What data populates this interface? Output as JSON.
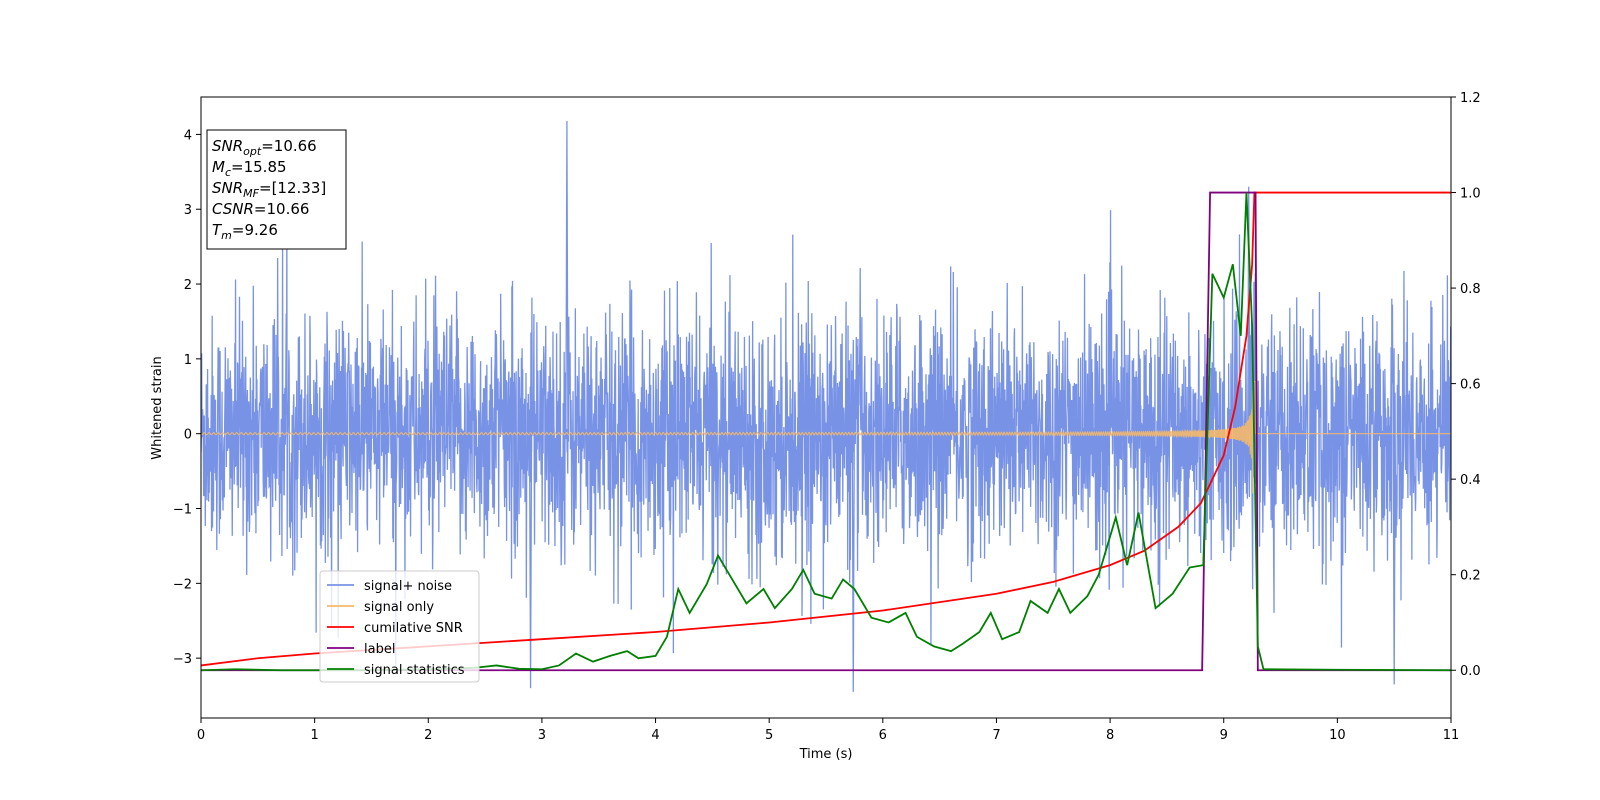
{
  "chart_data": {
    "type": "line",
    "xlabel": "Time (s)",
    "ylabel": "Whitened strain",
    "xlim": [
      0,
      11
    ],
    "ylim_left": [
      -3.8,
      4.5
    ],
    "ylim_right": [
      -0.1,
      1.2
    ],
    "x_ticks": [
      "0",
      "1",
      "2",
      "3",
      "4",
      "5",
      "6",
      "7",
      "8",
      "9",
      "10",
      "11"
    ],
    "y_ticks_left": [
      "−3",
      "−2",
      "−1",
      "0",
      "1",
      "2",
      "3",
      "4"
    ],
    "y_ticks_right": [
      "0.0",
      "0.2",
      "0.4",
      "0.6",
      "0.8",
      "1.0",
      "1.2"
    ],
    "grid": false,
    "legend_placement": "lower-left",
    "info_box": {
      "lines": [
        {
          "main": "SNR",
          "sub": "opt",
          "value": "=10.66"
        },
        {
          "main": "M",
          "sub": "c",
          "value": "=15.85"
        },
        {
          "main": "SNR",
          "sub": "MF",
          "value": "=[12.33]"
        },
        {
          "main": "CSNR",
          "sub": "",
          "value": "=10.66"
        },
        {
          "main": "T",
          "sub": "m",
          "value": "=9.26"
        }
      ]
    },
    "series": [
      {
        "name": "signal+ noise",
        "color": "#7893e6",
        "axis": "left",
        "kind": "noise",
        "approx_range": [
          -3.4,
          4.2
        ],
        "notable_spikes": [
          {
            "x": 3.22,
            "y": 4.18
          },
          {
            "x": 5.74,
            "y": -3.45
          },
          {
            "x": 2.9,
            "y": -3.4
          },
          {
            "x": 9.22,
            "y": 3.3
          },
          {
            "x": 10.5,
            "y": -3.35
          }
        ]
      },
      {
        "name": "signal only",
        "color": "#f5b96a",
        "axis": "left",
        "kind": "chirp",
        "merger_time": 9.26,
        "peak_amplitude": 1.2
      },
      {
        "name": "cumilative SNR",
        "color": "#ff0000",
        "axis": "right",
        "points": [
          [
            0,
            0.01
          ],
          [
            0.5,
            0.025
          ],
          [
            1,
            0.035
          ],
          [
            2,
            0.05
          ],
          [
            3,
            0.065
          ],
          [
            4,
            0.08
          ],
          [
            5,
            0.1
          ],
          [
            6,
            0.125
          ],
          [
            7,
            0.16
          ],
          [
            7.5,
            0.185
          ],
          [
            8,
            0.22
          ],
          [
            8.3,
            0.25
          ],
          [
            8.6,
            0.3
          ],
          [
            8.8,
            0.35
          ],
          [
            9.0,
            0.45
          ],
          [
            9.1,
            0.55
          ],
          [
            9.2,
            0.7
          ],
          [
            9.25,
            0.85
          ],
          [
            9.27,
            1.0
          ],
          [
            11,
            1.0
          ]
        ]
      },
      {
        "name": "label",
        "color": "#800080",
        "axis": "right",
        "points": [
          [
            0,
            0.0
          ],
          [
            8.81,
            0.0
          ],
          [
            8.88,
            1.0
          ],
          [
            9.28,
            1.0
          ],
          [
            9.3,
            0.0
          ],
          [
            11,
            0.0
          ]
        ]
      },
      {
        "name": "signal statistics",
        "color": "#008000",
        "axis": "right",
        "points": [
          [
            0,
            0.0
          ],
          [
            0.3,
            0.002
          ],
          [
            0.7,
            0.0
          ],
          [
            1.5,
            0.0
          ],
          [
            2.0,
            0.002
          ],
          [
            2.4,
            0.005
          ],
          [
            2.6,
            0.01
          ],
          [
            2.8,
            0.003
          ],
          [
            3.0,
            0.002
          ],
          [
            3.15,
            0.01
          ],
          [
            3.3,
            0.035
          ],
          [
            3.45,
            0.018
          ],
          [
            3.6,
            0.03
          ],
          [
            3.75,
            0.04
          ],
          [
            3.85,
            0.025
          ],
          [
            4.0,
            0.03
          ],
          [
            4.1,
            0.07
          ],
          [
            4.2,
            0.17
          ],
          [
            4.3,
            0.12
          ],
          [
            4.45,
            0.18
          ],
          [
            4.55,
            0.24
          ],
          [
            4.65,
            0.2
          ],
          [
            4.8,
            0.14
          ],
          [
            4.95,
            0.17
          ],
          [
            5.05,
            0.13
          ],
          [
            5.2,
            0.17
          ],
          [
            5.3,
            0.21
          ],
          [
            5.4,
            0.16
          ],
          [
            5.55,
            0.15
          ],
          [
            5.65,
            0.19
          ],
          [
            5.75,
            0.17
          ],
          [
            5.9,
            0.11
          ],
          [
            6.05,
            0.1
          ],
          [
            6.2,
            0.12
          ],
          [
            6.3,
            0.07
          ],
          [
            6.45,
            0.05
          ],
          [
            6.6,
            0.04
          ],
          [
            6.7,
            0.055
          ],
          [
            6.85,
            0.08
          ],
          [
            6.95,
            0.12
          ],
          [
            7.05,
            0.065
          ],
          [
            7.2,
            0.08
          ],
          [
            7.3,
            0.145
          ],
          [
            7.45,
            0.12
          ],
          [
            7.55,
            0.17
          ],
          [
            7.65,
            0.12
          ],
          [
            7.8,
            0.155
          ],
          [
            7.9,
            0.2
          ],
          [
            8.05,
            0.32
          ],
          [
            8.15,
            0.22
          ],
          [
            8.25,
            0.33
          ],
          [
            8.4,
            0.13
          ],
          [
            8.55,
            0.16
          ],
          [
            8.7,
            0.215
          ],
          [
            8.82,
            0.22
          ],
          [
            8.9,
            0.83
          ],
          [
            9.0,
            0.78
          ],
          [
            9.08,
            0.85
          ],
          [
            9.15,
            0.7
          ],
          [
            9.2,
            1.0
          ],
          [
            9.25,
            0.72
          ],
          [
            9.3,
            0.05
          ],
          [
            9.35,
            0.002
          ],
          [
            10.0,
            0.001
          ],
          [
            11,
            0.0
          ]
        ]
      }
    ]
  }
}
